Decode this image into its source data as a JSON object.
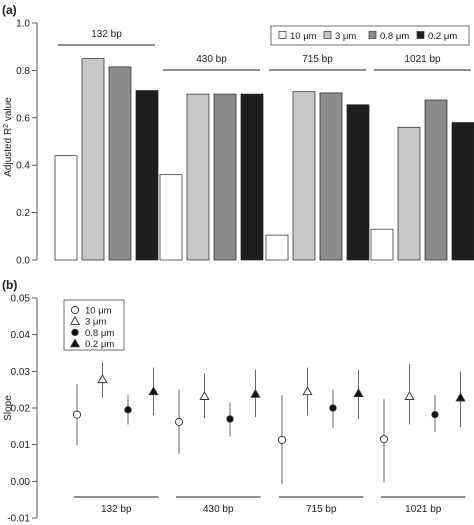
{
  "chart_data": [
    {
      "type": "bar",
      "panel_label": "(a)",
      "ylabel_main": "Adjusted R",
      "ylabel_sup": "2",
      "ylabel_tail": " value",
      "ylim": [
        0,
        1.0
      ],
      "yticks": [
        "0.0",
        "0.2",
        "0.4",
        "0.6",
        "0.8",
        "1.0"
      ],
      "groups": [
        "132 bp",
        "430 bp",
        "715 bp",
        "1021 bp"
      ],
      "series": [
        {
          "name": "10 μm",
          "color": "#ffffff",
          "values": [
            0.44,
            0.36,
            0.105,
            0.13
          ]
        },
        {
          "name": "3 μm",
          "color": "#c8c8c8",
          "values": [
            0.85,
            0.7,
            0.71,
            0.56
          ]
        },
        {
          "name": "0.8 μm",
          "color": "#8c8c8c",
          "values": [
            0.815,
            0.7,
            0.705,
            0.675
          ]
        },
        {
          "name": "0.2 μm",
          "color": "#1e1e1e",
          "values": [
            0.715,
            0.7,
            0.655,
            0.58
          ]
        }
      ],
      "legend_position": "top-right"
    },
    {
      "type": "scatter",
      "panel_label": "(b)",
      "ylabel": "Slope",
      "ylim": [
        -0.01,
        0.05
      ],
      "yticks": [
        "-0.01",
        "0.00",
        "0.01",
        "0.02",
        "0.03",
        "0.04",
        "0.05"
      ],
      "groups": [
        "132 bp",
        "430 bp",
        "715 bp",
        "1021 bp"
      ],
      "series": [
        {
          "name": "10 μm",
          "marker": "open-circle",
          "values": [
            0.0182,
            0.0162,
            0.0113,
            0.0115
          ],
          "err_low": [
            0.0098,
            0.0075,
            -0.0008,
            -0.0003
          ],
          "err_high": [
            0.0265,
            0.025,
            0.0235,
            0.0225
          ]
        },
        {
          "name": "3 μm",
          "marker": "open-triangle",
          "values": [
            0.0278,
            0.0232,
            0.0245,
            0.0232
          ],
          "err_low": [
            0.0228,
            0.0172,
            0.018,
            0.0155
          ],
          "err_high": [
            0.0325,
            0.0295,
            0.031,
            0.032
          ]
        },
        {
          "name": "0.8 μm",
          "marker": "filled-circle",
          "values": [
            0.0195,
            0.017,
            0.02,
            0.0182
          ],
          "err_low": [
            0.0155,
            0.0122,
            0.0145,
            0.0135
          ],
          "err_high": [
            0.0235,
            0.0215,
            0.025,
            0.0235
          ]
        },
        {
          "name": "0.2 μm",
          "marker": "filled-triangle",
          "values": [
            0.0245,
            0.0238,
            0.024,
            0.0228
          ],
          "err_low": [
            0.018,
            0.0175,
            0.017,
            0.0148
          ],
          "err_high": [
            0.031,
            0.0305,
            0.0305,
            0.03
          ]
        }
      ],
      "legend_position": "top-left"
    }
  ]
}
